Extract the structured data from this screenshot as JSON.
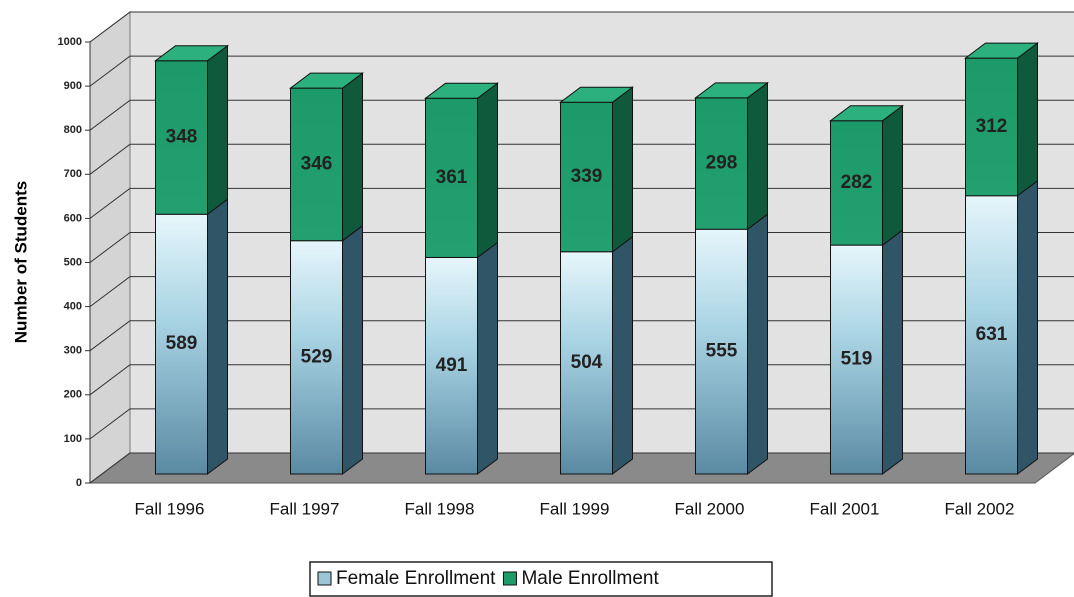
{
  "chart_data": {
    "type": "bar",
    "stacked": true,
    "three_d": true,
    "y_label": "Number of Students",
    "categories": [
      "Fall 1996",
      "Fall 1997",
      "Fall 1998",
      "Fall 1999",
      "Fall 2000",
      "Fall 2001",
      "Fall 2002"
    ],
    "series": [
      {
        "name": "Female Enrollment",
        "color": "#7fb3c8",
        "values": [
          589,
          529,
          491,
          504,
          555,
          519,
          631
        ]
      },
      {
        "name": "Male Enrollment",
        "color": "#1f9a6a",
        "values": [
          348,
          346,
          361,
          339,
          298,
          282,
          312
        ]
      }
    ],
    "ylim": [
      0,
      1000
    ],
    "yticks": [
      0,
      100,
      200,
      300,
      400,
      500,
      600,
      700,
      800,
      900,
      1000
    ],
    "grid": true,
    "legend": "bottom"
  }
}
